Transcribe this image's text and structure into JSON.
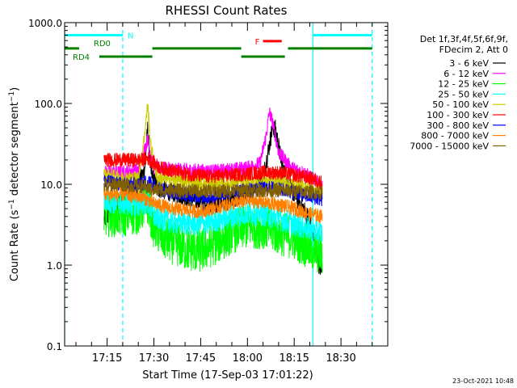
{
  "chart_data": {
    "type": "line",
    "title": "RHESSI Count Rates",
    "xlabel": "Start Time (17-Sep-03 17:01:22)",
    "ylabel": "Count Rate (s⁻¹ detector segment⁻¹)",
    "y_scale": "log",
    "ylim": [
      0.1,
      1000
    ],
    "y_ticks": [
      {
        "v": 0.1,
        "label": "0.1"
      },
      {
        "v": 1,
        "label": "1.0"
      },
      {
        "v": 10,
        "label": "10.0"
      },
      {
        "v": 100,
        "label": "100.0"
      },
      {
        "v": 1000,
        "label": "1000.0"
      }
    ],
    "xlim": [
      "17:01:22",
      "18:45:00"
    ],
    "x_ticks": [
      "17:15",
      "17:30",
      "17:45",
      "18:00",
      "18:15",
      "18:30"
    ],
    "grid": false,
    "legend": {
      "position": "right",
      "header": [
        "Det 1f,3f,4f,5f,6f,9f,",
        "FDecim 2, Att 0"
      ],
      "items": [
        {
          "name": "3 - 6 keV",
          "color": "#000000"
        },
        {
          "name": "6 - 12 keV",
          "color": "#ff00ff"
        },
        {
          "name": "12 - 25 keV",
          "color": "#00ff00"
        },
        {
          "name": "25 - 50 keV",
          "color": "#00ffff"
        },
        {
          "name": "50 - 100 keV",
          "color": "#cccc00"
        },
        {
          "name": "100 - 300 keV",
          "color": "#ff0000"
        },
        {
          "name": "300 - 800 keV",
          "color": "#0000ff"
        },
        {
          "name": "800 - 7000 keV",
          "color": "#ff8000"
        },
        {
          "name": "7000 - 15000 keV",
          "color": "#806000"
        }
      ]
    },
    "data_interval": [
      "17:14:00",
      "18:24:00"
    ],
    "series": [
      {
        "name": "3 - 6 keV",
        "color": "#000000",
        "points": [
          [
            "17:14",
            3.6
          ],
          [
            "17:17",
            5.0
          ],
          [
            "17:20",
            6.5
          ],
          [
            "17:24",
            8.0
          ],
          [
            "17:27",
            15
          ],
          [
            "17:28",
            48
          ],
          [
            "17:29",
            14
          ],
          [
            "17:31",
            9
          ],
          [
            "17:38",
            7.5
          ],
          [
            "17:45",
            6.0
          ],
          [
            "17:50",
            5.5
          ],
          [
            "17:55",
            6.5
          ],
          [
            "18:00",
            7.5
          ],
          [
            "18:05",
            12
          ],
          [
            "18:07",
            30
          ],
          [
            "18:08",
            50
          ],
          [
            "18:09",
            48
          ],
          [
            "18:11",
            18
          ],
          [
            "18:13",
            10
          ],
          [
            "18:16",
            6.5
          ],
          [
            "18:18",
            5.0
          ],
          [
            "18:20",
            3.5
          ],
          [
            "18:22",
            1.5
          ],
          [
            "18:23",
            0.9
          ],
          [
            "18:24",
            1.1
          ]
        ]
      },
      {
        "name": "6 - 12 keV",
        "color": "#ff00ff",
        "points": [
          [
            "17:14",
            14
          ],
          [
            "17:20",
            14
          ],
          [
            "17:25",
            15
          ],
          [
            "17:28",
            36
          ],
          [
            "17:30",
            16
          ],
          [
            "17:40",
            15
          ],
          [
            "17:50",
            14.5
          ],
          [
            "18:00",
            16
          ],
          [
            "18:04",
            18
          ],
          [
            "18:06",
            40
          ],
          [
            "18:07",
            78
          ],
          [
            "18:08",
            60
          ],
          [
            "18:10",
            25
          ],
          [
            "18:14",
            16
          ],
          [
            "18:18",
            14
          ],
          [
            "18:24",
            9.5
          ]
        ]
      },
      {
        "name": "12 - 25 keV",
        "color": "#00ff00",
        "points": [
          [
            "17:14",
            4.2
          ],
          [
            "17:20",
            4.2
          ],
          [
            "17:25",
            4.5
          ],
          [
            "17:28",
            6
          ],
          [
            "17:30",
            3.0
          ],
          [
            "17:33",
            2.2
          ],
          [
            "17:40",
            1.6
          ],
          [
            "17:45",
            1.5
          ],
          [
            "17:50",
            1.9
          ],
          [
            "17:55",
            2.6
          ],
          [
            "18:00",
            3.0
          ],
          [
            "18:05",
            3.0
          ],
          [
            "18:10",
            2.5
          ],
          [
            "18:15",
            2.2
          ],
          [
            "18:20",
            1.6
          ],
          [
            "18:24",
            1.4
          ]
        ]
      },
      {
        "name": "25 - 50 keV",
        "color": "#00ffff",
        "points": [
          [
            "17:14",
            6.2
          ],
          [
            "17:20",
            5.8
          ],
          [
            "17:25",
            5.5
          ],
          [
            "17:28",
            6
          ],
          [
            "17:30",
            4.0
          ],
          [
            "17:36",
            3.4
          ],
          [
            "17:45",
            3.2
          ],
          [
            "17:55",
            4.0
          ],
          [
            "18:00",
            4.4
          ],
          [
            "18:05",
            4.3
          ],
          [
            "18:10",
            3.8
          ],
          [
            "18:15",
            3.2
          ],
          [
            "18:20",
            2.8
          ],
          [
            "18:24",
            2.5
          ]
        ]
      },
      {
        "name": "50 - 100 keV",
        "color": "#cccc00",
        "points": [
          [
            "17:14",
            13
          ],
          [
            "17:20",
            12
          ],
          [
            "17:25",
            12
          ],
          [
            "17:27",
            40
          ],
          [
            "17:28",
            100
          ],
          [
            "17:29",
            30
          ],
          [
            "17:31",
            12
          ],
          [
            "17:40",
            11
          ],
          [
            "17:50",
            10
          ],
          [
            "18:00",
            11
          ],
          [
            "18:08",
            11.5
          ],
          [
            "18:15",
            10
          ],
          [
            "18:20",
            9
          ],
          [
            "18:24",
            8
          ]
        ]
      },
      {
        "name": "100 - 300 keV",
        "color": "#ff0000",
        "points": [
          [
            "17:14",
            20
          ],
          [
            "17:20",
            20
          ],
          [
            "17:26",
            20
          ],
          [
            "17:28",
            21
          ],
          [
            "17:32",
            16
          ],
          [
            "17:40",
            13.5
          ],
          [
            "17:47",
            12.5
          ],
          [
            "17:55",
            13
          ],
          [
            "18:00",
            13.5
          ],
          [
            "18:05",
            14
          ],
          [
            "18:10",
            14
          ],
          [
            "18:15",
            13
          ],
          [
            "18:20",
            12
          ],
          [
            "18:24",
            10.5
          ]
        ]
      },
      {
        "name": "300 - 800 keV",
        "color": "#0000ff",
        "points": [
          [
            "17:14",
            11
          ],
          [
            "17:20",
            10
          ],
          [
            "17:26",
            10
          ],
          [
            "17:28",
            11
          ],
          [
            "17:33",
            8.5
          ],
          [
            "17:40",
            7.5
          ],
          [
            "17:47",
            7.0
          ],
          [
            "17:55",
            7.8
          ],
          [
            "18:00",
            8.5
          ],
          [
            "18:08",
            9.0
          ],
          [
            "18:15",
            8.0
          ],
          [
            "18:20",
            7.0
          ],
          [
            "18:24",
            6.5
          ]
        ]
      },
      {
        "name": "800 - 7000 keV",
        "color": "#ff8000",
        "points": [
          [
            "17:14",
            7.5
          ],
          [
            "17:20",
            7.5
          ],
          [
            "17:26",
            7.0
          ],
          [
            "17:30",
            5.8
          ],
          [
            "17:36",
            5.0
          ],
          [
            "17:45",
            4.6
          ],
          [
            "17:50",
            5.2
          ],
          [
            "17:55",
            5.8
          ],
          [
            "18:00",
            6.3
          ],
          [
            "18:05",
            6.0
          ],
          [
            "18:10",
            5.6
          ],
          [
            "18:15",
            5.0
          ],
          [
            "18:20",
            4.3
          ],
          [
            "18:24",
            4.0
          ]
        ]
      },
      {
        "name": "7000 - 15000 keV",
        "color": "#806000",
        "points": [
          [
            "17:14",
            10
          ],
          [
            "17:20",
            10
          ],
          [
            "17:26",
            9.5
          ],
          [
            "17:30",
            8.5
          ],
          [
            "17:40",
            8.3
          ],
          [
            "17:50",
            8.2
          ],
          [
            "18:00",
            8.5
          ],
          [
            "18:10",
            8.4
          ],
          [
            "18:20",
            8.0
          ],
          [
            "18:24",
            7.8
          ]
        ]
      }
    ],
    "annotations": {
      "flags": [
        {
          "label": "N",
          "color": "#00ffff",
          "y": 700,
          "ranges": [
            [
              "17:01:22",
              "17:20:00"
            ],
            [
              "18:21:00",
              "18:40:00"
            ]
          ],
          "show_label": true
        },
        {
          "label": "RD0",
          "color": "#008000",
          "y": 480,
          "ranges": [
            [
              "17:01:22",
              "17:06:00"
            ],
            [
              "17:29:30",
              "17:58:00"
            ],
            [
              "18:13:00",
              "18:40:00"
            ]
          ],
          "show_label": true
        },
        {
          "label": "RD4",
          "color": "#008000",
          "y": 380,
          "ranges": [
            [
              "17:12:30",
              "17:29:30"
            ],
            [
              "17:58:00",
              "18:12:00"
            ]
          ],
          "show_label": true
        },
        {
          "label": "F",
          "color": "#ff0000",
          "y": 590,
          "ranges": [
            [
              "18:05:00",
              "18:11:00"
            ]
          ],
          "show_label": true
        }
      ],
      "vertical_lines": [
        {
          "time": "17:01:22",
          "color": "#00ffff",
          "style": "solid"
        },
        {
          "time": "17:20:00",
          "color": "#00ffff",
          "style": "dashed"
        },
        {
          "time": "18:21:00",
          "color": "#00ffff",
          "style": "solid"
        },
        {
          "time": "18:40:00",
          "color": "#00ffff",
          "style": "dashed"
        }
      ]
    },
    "footer": "23-Oct-2021 10:48"
  }
}
